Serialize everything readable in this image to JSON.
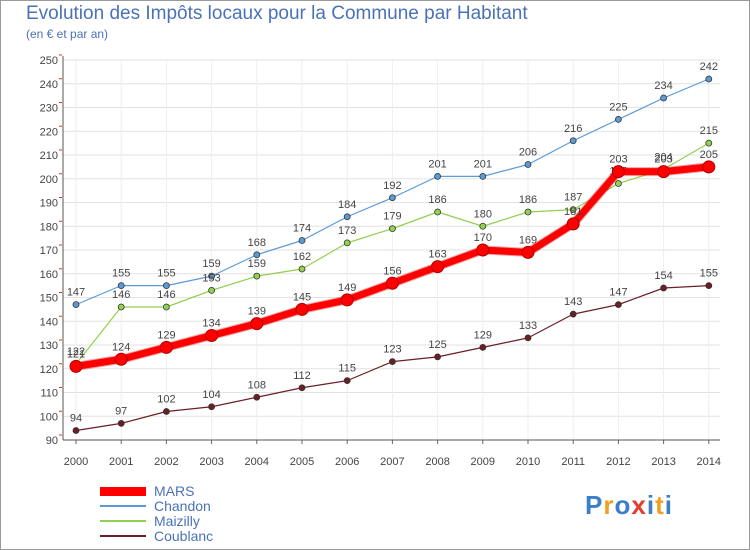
{
  "title": "Evolution des Impôts locaux pour la Commune par Habitant",
  "subtitle": "(en € et par an)",
  "chart_data": {
    "type": "line",
    "title": "Evolution des Impôts locaux pour la Commune par Habitant",
    "ylabel": "(en € et par an)",
    "xlabel": "",
    "ylim": [
      90,
      250
    ],
    "yticks": [
      90,
      100,
      110,
      120,
      130,
      140,
      150,
      160,
      170,
      180,
      190,
      200,
      210,
      220,
      230,
      240,
      250
    ],
    "categories": [
      "2000",
      "2001",
      "2002",
      "2003",
      "2004",
      "2005",
      "2006",
      "2007",
      "2008",
      "2009",
      "2010",
      "2011",
      "2012",
      "2013",
      "2014"
    ],
    "grid": true,
    "legend_position": "bottom-left",
    "series": [
      {
        "name": "Chandon",
        "color": "#5b9bd5",
        "values": [
          147,
          155,
          155,
          159,
          168,
          174,
          184,
          192,
          201,
          201,
          206,
          216,
          225,
          234,
          242
        ]
      },
      {
        "name": "Maizilly",
        "color": "#92d050",
        "values": [
          122,
          146,
          146,
          153,
          159,
          162,
          173,
          179,
          186,
          180,
          186,
          187,
          198,
          204,
          215
        ]
      },
      {
        "name": "Coublanc",
        "color": "#6b1f24",
        "values": [
          94,
          97,
          102,
          104,
          108,
          112,
          115,
          123,
          125,
          129,
          133,
          143,
          147,
          154,
          155
        ]
      },
      {
        "name": "MARS",
        "color": "#ff0000",
        "values": [
          121,
          124,
          129,
          134,
          139,
          145,
          149,
          156,
          163,
          170,
          169,
          181,
          203,
          203,
          205
        ]
      }
    ]
  },
  "legend": [
    {
      "name": "MARS",
      "color": "#ff0000"
    },
    {
      "name": "Chandon",
      "color": "#5b9bd5"
    },
    {
      "name": "Maizilly",
      "color": "#92d050"
    },
    {
      "name": "Coublanc",
      "color": "#6b1f24"
    }
  ],
  "logo": {
    "text": "Proxiti",
    "letters": [
      {
        "ch": "P",
        "color": "#3a7fc8"
      },
      {
        "ch": "r",
        "color": "#f0a020"
      },
      {
        "ch": "o",
        "color": "#3a7fc8"
      },
      {
        "ch": "x",
        "color": "#e83a30"
      },
      {
        "ch": "i",
        "color": "#3a7fc8"
      },
      {
        "ch": "t",
        "color": "#f0a020"
      },
      {
        "ch": "i",
        "color": "#3a7fc8"
      }
    ]
  }
}
